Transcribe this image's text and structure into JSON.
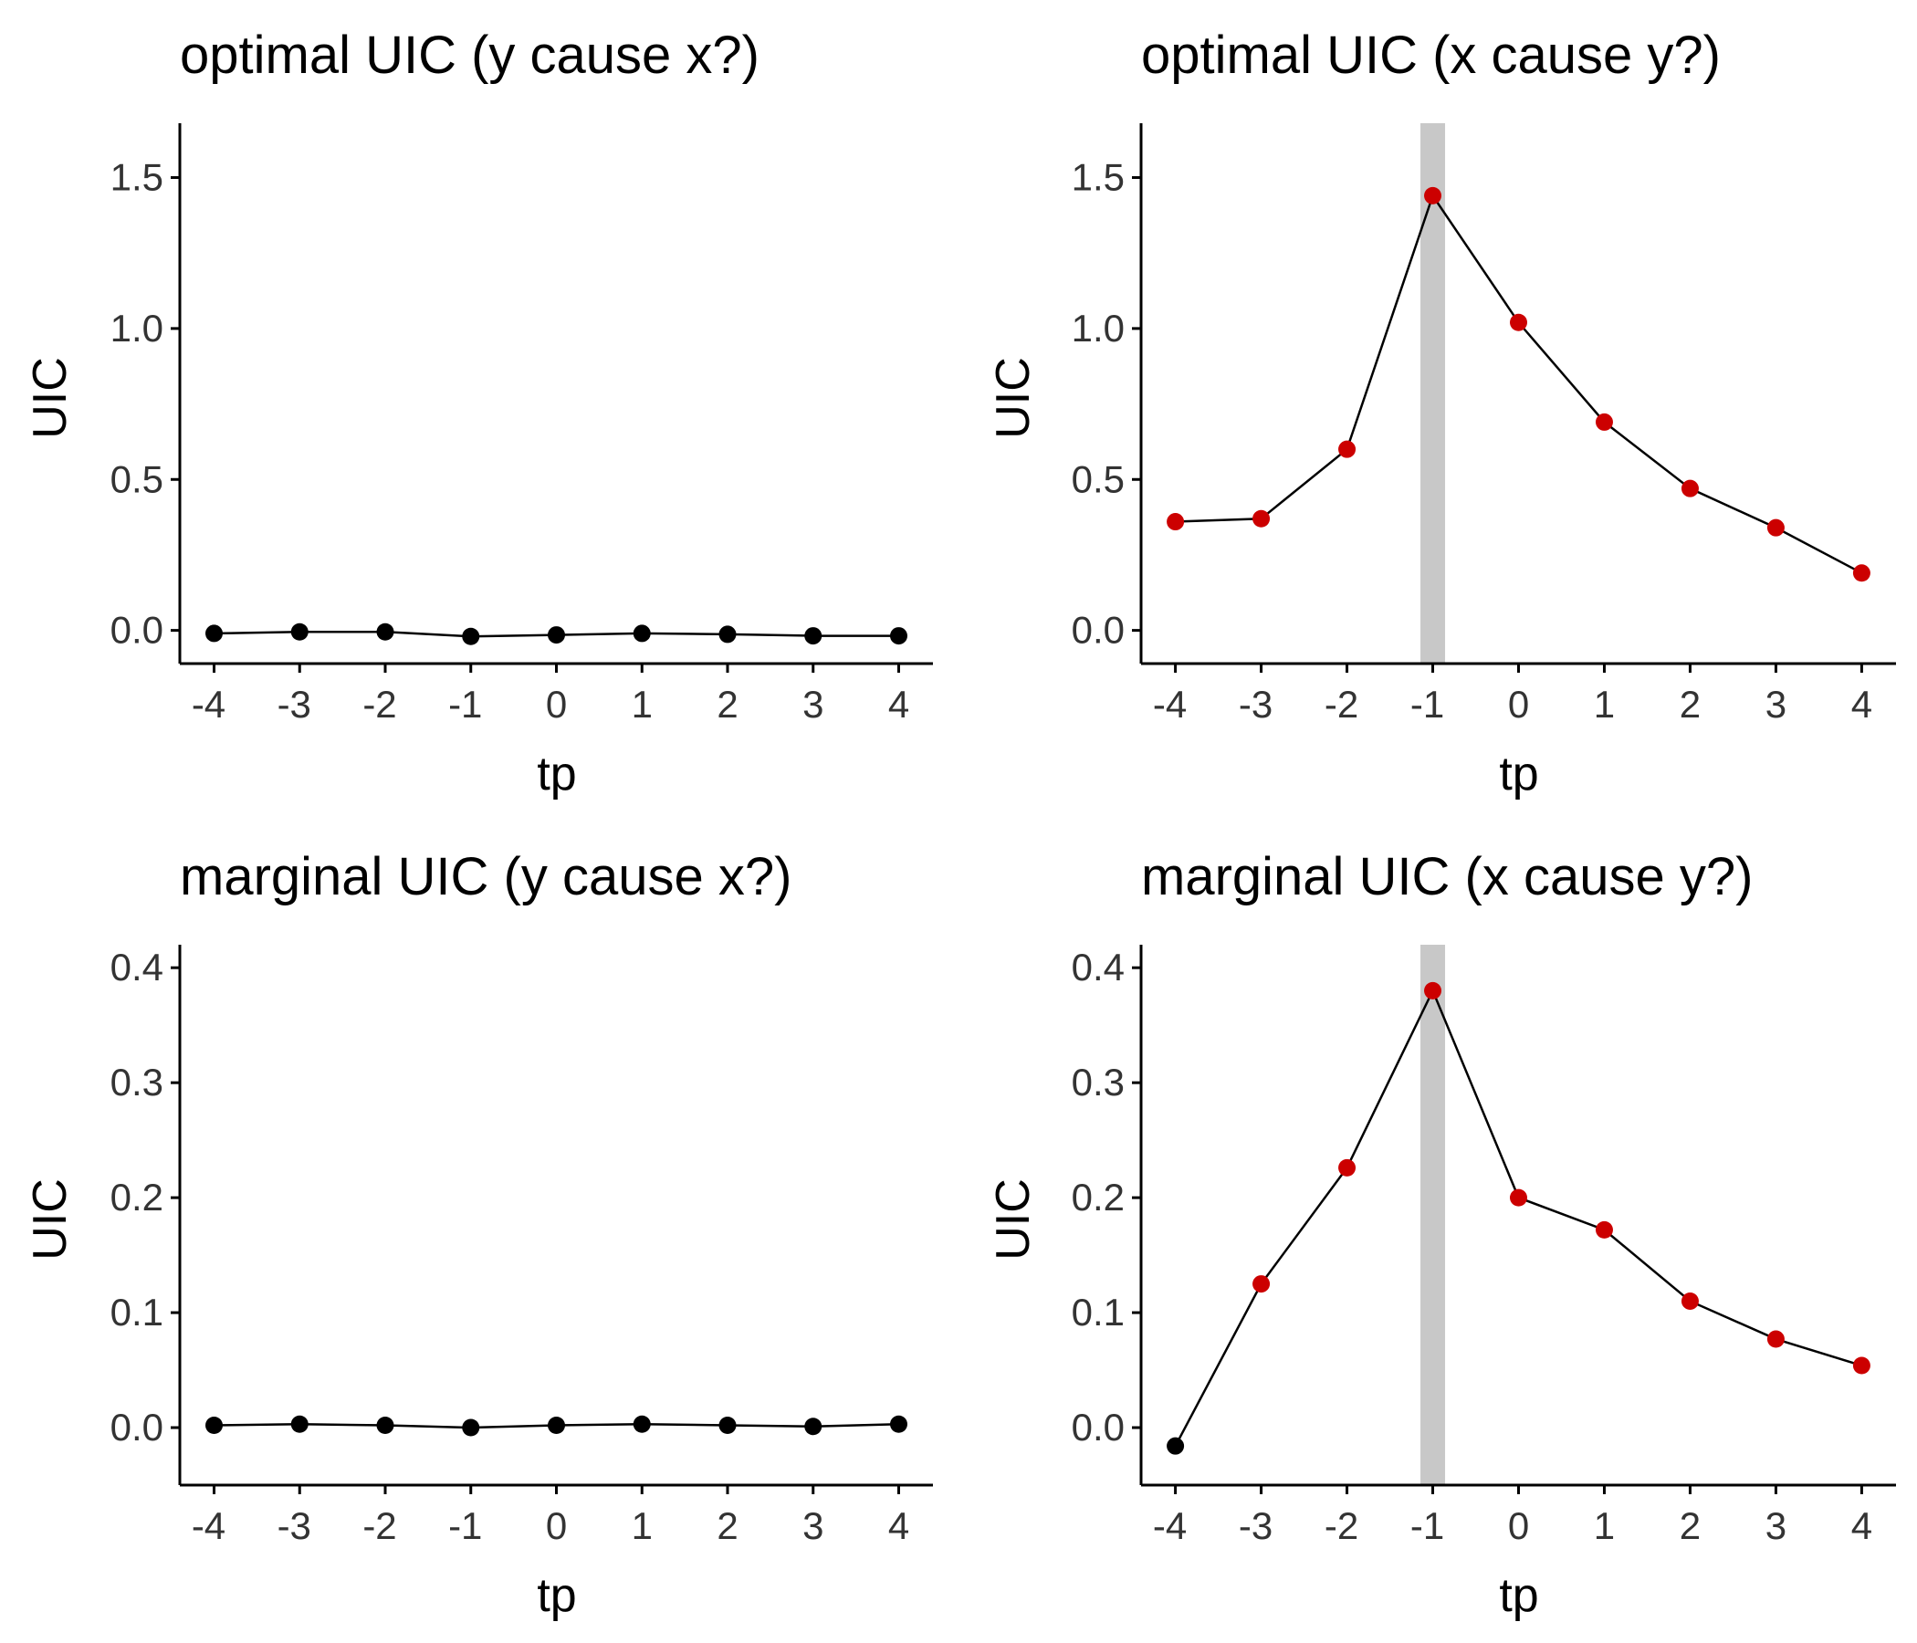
{
  "colors": {
    "point": "#000000",
    "highlight_point": "#CC0000",
    "line": "#000000",
    "band": "#C8C8C8",
    "axis": "#000000"
  },
  "chart_data": [
    {
      "id": "optimal-y-cause-x",
      "type": "line",
      "title": "optimal UIC (y cause x?)",
      "xlabel": "tp",
      "ylabel": "UIC",
      "x": [
        -4,
        -3,
        -2,
        -1,
        0,
        1,
        2,
        3,
        4
      ],
      "x_ticks": [
        "-4",
        "-3",
        "-2",
        "-1",
        "0",
        "1",
        "2",
        "3",
        "4"
      ],
      "ylim": [
        -0.11,
        1.68
      ],
      "y_ticks": [
        0.0,
        0.5,
        1.0,
        1.5
      ],
      "y_tick_labels": [
        "0.0",
        "0.5",
        "1.0",
        "1.5"
      ],
      "series": [
        {
          "values": [
            -0.01,
            -0.005,
            -0.005,
            -0.02,
            -0.015,
            -0.01,
            -0.013,
            -0.018,
            -0.018
          ],
          "highlight": [
            false,
            false,
            false,
            false,
            false,
            false,
            false,
            false,
            false
          ]
        }
      ],
      "highlight_band_at": null
    },
    {
      "id": "optimal-x-cause-y",
      "type": "line",
      "title": "optimal UIC (x cause y?)",
      "xlabel": "tp",
      "ylabel": "UIC",
      "x": [
        -4,
        -3,
        -2,
        -1,
        0,
        1,
        2,
        3,
        4
      ],
      "x_ticks": [
        "-4",
        "-3",
        "-2",
        "-1",
        "0",
        "1",
        "2",
        "3",
        "4"
      ],
      "ylim": [
        -0.11,
        1.68
      ],
      "y_ticks": [
        0.0,
        0.5,
        1.0,
        1.5
      ],
      "y_tick_labels": [
        "0.0",
        "0.5",
        "1.0",
        "1.5"
      ],
      "series": [
        {
          "values": [
            0.36,
            0.37,
            0.6,
            1.44,
            1.02,
            0.69,
            0.47,
            0.34,
            0.19
          ],
          "highlight": [
            true,
            true,
            true,
            true,
            true,
            true,
            true,
            true,
            true
          ]
        }
      ],
      "highlight_band_at": -1
    },
    {
      "id": "marginal-y-cause-x",
      "type": "line",
      "title": "marginal UIC (y cause x?)",
      "xlabel": "tp",
      "ylabel": "UIC",
      "x": [
        -4,
        -3,
        -2,
        -1,
        0,
        1,
        2,
        3,
        4
      ],
      "x_ticks": [
        "-4",
        "-3",
        "-2",
        "-1",
        "0",
        "1",
        "2",
        "3",
        "4"
      ],
      "ylim": [
        -0.05,
        0.42
      ],
      "y_ticks": [
        0.0,
        0.1,
        0.2,
        0.3,
        0.4
      ],
      "y_tick_labels": [
        "0.0",
        "0.1",
        "0.2",
        "0.3",
        "0.4"
      ],
      "series": [
        {
          "values": [
            0.002,
            0.003,
            0.002,
            0.0,
            0.002,
            0.003,
            0.002,
            0.001,
            0.003
          ],
          "highlight": [
            false,
            false,
            false,
            false,
            false,
            false,
            false,
            false,
            false
          ]
        }
      ],
      "highlight_band_at": null
    },
    {
      "id": "marginal-x-cause-y",
      "type": "line",
      "title": "marginal UIC (x cause y?)",
      "xlabel": "tp",
      "ylabel": "UIC",
      "x": [
        -4,
        -3,
        -2,
        -1,
        0,
        1,
        2,
        3,
        4
      ],
      "x_ticks": [
        "-4",
        "-3",
        "-2",
        "-1",
        "0",
        "1",
        "2",
        "3",
        "4"
      ],
      "ylim": [
        -0.05,
        0.42
      ],
      "y_ticks": [
        0.0,
        0.1,
        0.2,
        0.3,
        0.4
      ],
      "y_tick_labels": [
        "0.0",
        "0.1",
        "0.2",
        "0.3",
        "0.4"
      ],
      "series": [
        {
          "values": [
            -0.016,
            0.125,
            0.226,
            0.38,
            0.2,
            0.172,
            0.11,
            0.077,
            0.054
          ],
          "highlight": [
            false,
            true,
            true,
            true,
            true,
            true,
            true,
            true,
            true
          ]
        }
      ],
      "highlight_band_at": -1
    }
  ]
}
